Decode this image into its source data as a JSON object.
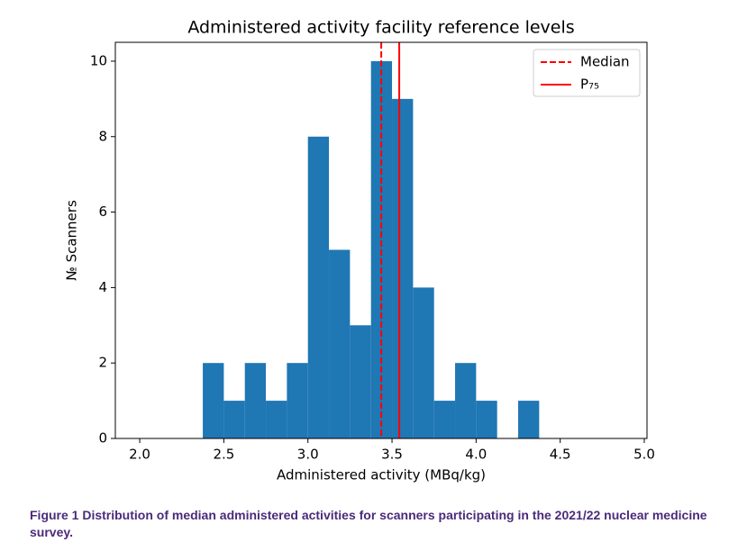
{
  "chart_data": {
    "type": "histogram",
    "title": "Administered activity facility reference levels",
    "x_label": "Administered activity (MBq/kg)",
    "y_label": "№ Scanners",
    "bins": [
      2.375,
      2.5,
      2.625,
      2.75,
      2.875,
      3.0,
      3.125,
      3.25,
      3.375,
      3.5,
      3.625,
      3.75,
      3.875,
      4.0,
      4.125,
      4.25,
      4.375
    ],
    "values": [
      2,
      1,
      2,
      1,
      2,
      8,
      5,
      3,
      10,
      9,
      4,
      1,
      2,
      1,
      0,
      1
    ],
    "color": "#1f77b4",
    "xlim": [
      1.855,
      5.016
    ],
    "ylim": [
      0,
      10.5
    ],
    "xticks": [
      {
        "value": 2.0,
        "label": "2.0"
      },
      {
        "value": 2.5,
        "label": "2.5"
      },
      {
        "value": 3.0,
        "label": "3.0"
      },
      {
        "value": 3.5,
        "label": "3.5"
      },
      {
        "value": 4.0,
        "label": "4.0"
      },
      {
        "value": 4.5,
        "label": "4.5"
      },
      {
        "value": 5.0,
        "label": "5.0"
      }
    ],
    "yticks": [
      0,
      2,
      4,
      6,
      8,
      10
    ],
    "reference_lines": [
      {
        "name": "Median",
        "value": 3.436,
        "color": "#ff0000",
        "style": "dashed"
      },
      {
        "name": "P₇₅",
        "value": 3.543,
        "color": "#ff0000",
        "style": "solid"
      }
    ],
    "legend": "upper right"
  },
  "caption": "Figure 1 Distribution of median administered activities for scanners participating in the 2021/22 nuclear medicine survey."
}
